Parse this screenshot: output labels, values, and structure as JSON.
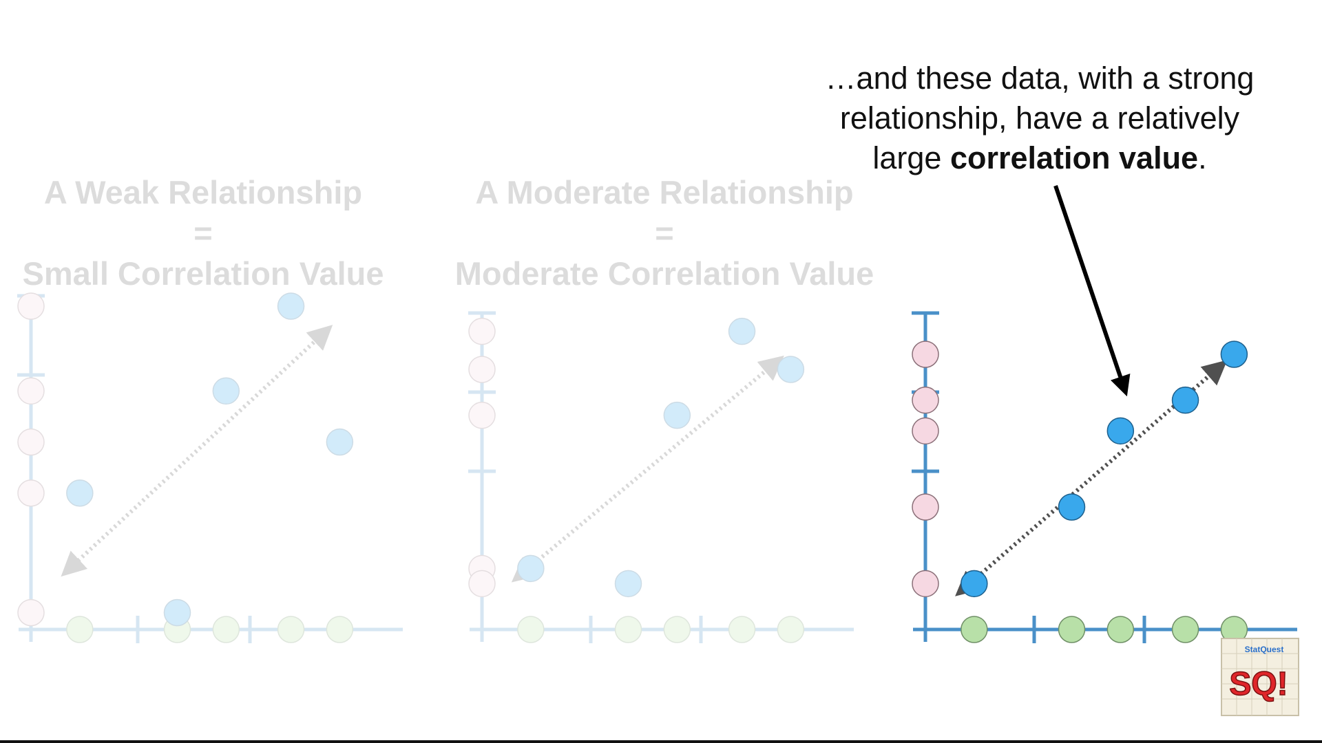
{
  "weak": {
    "title_line1": "A Weak Relationship",
    "equals": "=",
    "title_line2": "Small Correlation Value"
  },
  "moderate": {
    "title_line1": "A Moderate Relationship",
    "equals": "=",
    "title_line2": "Moderate Correlation Value"
  },
  "caption": {
    "line1": "…and these data, with a strong",
    "line2": "relationship, have a relatively",
    "line3_prefix": "large ",
    "line3_bold": "correlation value",
    "line3_suffix": "."
  },
  "logo": {
    "text_top": "StatQuest",
    "text_main": "SQ!"
  },
  "colors": {
    "axis": "#4a90c8",
    "point": "#39a8ec",
    "x_marginal": "#b8e0a8",
    "y_marginal": "#f6d8e2",
    "trend_arrow": "#505050",
    "pointer_arrow": "#000000",
    "faded_opacity": 0.22
  },
  "chart_data": [
    {
      "type": "scatter",
      "title": "A Weak Relationship = Small Correlation Value",
      "faded": true,
      "x": [
        1,
        3,
        4,
        5.33,
        6.33
      ],
      "y": [
        2.67,
        0.33,
        4.67,
        6.33,
        3.67
      ],
      "xlim": [
        0,
        7.2
      ],
      "ylim": [
        0,
        6.6
      ],
      "trend_arrow": {
        "from": [
          0.8,
          1.2
        ],
        "to": [
          6,
          5.8
        ],
        "style": "dotted, double-headed"
      },
      "marginal_rugs": true
    },
    {
      "type": "scatter",
      "title": "A Moderate Relationship = Moderate Correlation Value",
      "faded": true,
      "x": [
        1,
        3,
        4,
        5.33,
        6.33
      ],
      "y": [
        1.33,
        1,
        4.67,
        6.5,
        5.67
      ],
      "xlim": [
        0,
        7.2
      ],
      "ylim": [
        0,
        6.9
      ],
      "trend_arrow": {
        "from": [
          0.8,
          1.2
        ],
        "to": [
          6,
          5.8
        ],
        "style": "dotted, double-headed"
      },
      "marginal_rugs": true
    },
    {
      "type": "scatter",
      "title": "",
      "faded": false,
      "x": [
        1,
        3,
        4,
        5.33,
        6.33
      ],
      "y": [
        1,
        2.67,
        4.33,
        5,
        6
      ],
      "xlim": [
        0,
        7.2
      ],
      "ylim": [
        0,
        6.9
      ],
      "trend_arrow": {
        "from": [
          0.8,
          0.9
        ],
        "to": [
          6,
          5.7
        ],
        "style": "dotted, double-headed"
      },
      "marginal_rugs": true
    }
  ]
}
